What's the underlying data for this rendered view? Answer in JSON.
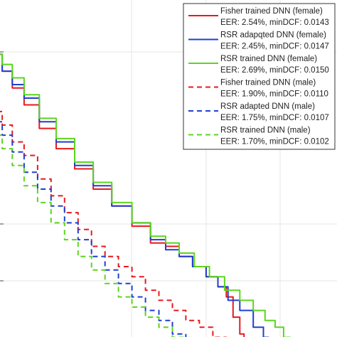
{
  "chart_data": {
    "type": "line",
    "title": "",
    "xlabel": "",
    "ylabel": "",
    "grid": true,
    "legend_position": "top-right",
    "series": [
      {
        "name": "Fisher trained DNN (female)",
        "metric": "EER: 2.54%, minDCF: 0.0143",
        "color": "#e8191e",
        "dash": "solid",
        "x": [
          0.0,
          0.03,
          0.06,
          0.1,
          0.15,
          0.2,
          0.26,
          0.31,
          0.37,
          0.43,
          0.48,
          0.52,
          0.56,
          0.6,
          0.64,
          0.67,
          0.69,
          0.71,
          0.73,
          0.735
        ],
        "y": [
          0.86,
          0.81,
          0.76,
          0.71,
          0.64,
          0.58,
          0.52,
          0.46,
          0.41,
          0.35,
          0.3,
          0.29,
          0.26,
          0.23,
          0.2,
          0.17,
          0.14,
          0.08,
          0.03,
          0.0
        ]
      },
      {
        "name": "RSR adapqted DNN (female)",
        "metric": "EER: 2.45%, minDCF: 0.0147",
        "color": "#1f3fd1",
        "dash": "solid",
        "x": [
          0.0,
          0.03,
          0.06,
          0.1,
          0.15,
          0.2,
          0.26,
          0.31,
          0.37,
          0.43,
          0.48,
          0.52,
          0.56,
          0.6,
          0.64,
          0.67,
          0.7,
          0.74,
          0.78,
          0.8,
          0.81
        ],
        "y": [
          0.86,
          0.81,
          0.77,
          0.73,
          0.66,
          0.6,
          0.53,
          0.47,
          0.41,
          0.36,
          0.31,
          0.28,
          0.26,
          0.23,
          0.2,
          0.17,
          0.13,
          0.1,
          0.05,
          0.02,
          0.0
        ]
      },
      {
        "name": "RSR trained DNN (female)",
        "metric": "EER: 2.69%, minDCF: 0.0150",
        "color": "#5cd51f",
        "dash": "solid",
        "x": [
          0.0,
          0.03,
          0.06,
          0.1,
          0.15,
          0.2,
          0.26,
          0.31,
          0.37,
          0.43,
          0.48,
          0.52,
          0.56,
          0.61,
          0.65,
          0.7,
          0.74,
          0.78,
          0.81,
          0.84,
          0.86,
          0.88
        ],
        "y": [
          0.86,
          0.83,
          0.79,
          0.74,
          0.67,
          0.61,
          0.54,
          0.48,
          0.42,
          0.36,
          0.32,
          0.3,
          0.27,
          0.23,
          0.2,
          0.16,
          0.13,
          0.1,
          0.07,
          0.05,
          0.02,
          0.0
        ]
      },
      {
        "name": "Fisher trained DNN (male)",
        "metric": "EER: 1.90%, minDCF: 0.0110",
        "color": "#e8191e",
        "dash": "dashed",
        "x": [
          0.0,
          0.03,
          0.06,
          0.1,
          0.14,
          0.18,
          0.22,
          0.26,
          0.3,
          0.34,
          0.38,
          0.42,
          0.46,
          0.5,
          0.54,
          0.58,
          0.62,
          0.66,
          0.7
        ],
        "y": [
          0.69,
          0.65,
          0.6,
          0.56,
          0.49,
          0.44,
          0.39,
          0.34,
          0.29,
          0.26,
          0.23,
          0.2,
          0.16,
          0.13,
          0.1,
          0.07,
          0.05,
          0.02,
          0.0
        ]
      },
      {
        "name": "RSR adapted DNN (male)",
        "metric": "EER: 1.75%, minDCF: 0.0107",
        "color": "#1f3fd1",
        "dash": "dashed",
        "x": [
          0.0,
          0.03,
          0.06,
          0.1,
          0.14,
          0.18,
          0.22,
          0.26,
          0.3,
          0.34,
          0.38,
          0.42,
          0.46,
          0.5,
          0.54,
          0.58
        ],
        "y": [
          0.66,
          0.62,
          0.57,
          0.51,
          0.46,
          0.41,
          0.36,
          0.31,
          0.26,
          0.22,
          0.18,
          0.14,
          0.1,
          0.07,
          0.03,
          0.0
        ]
      },
      {
        "name": "RSR trained DNN (male)",
        "metric": "EER: 1.70%, minDCF: 0.0102",
        "color": "#5cd51f",
        "dash": "dashed",
        "x": [
          0.0,
          0.03,
          0.06,
          0.1,
          0.14,
          0.18,
          0.22,
          0.26,
          0.3,
          0.34,
          0.38,
          0.42,
          0.46,
          0.5,
          0.54,
          0.57
        ],
        "y": [
          0.62,
          0.58,
          0.53,
          0.47,
          0.42,
          0.36,
          0.31,
          0.26,
          0.22,
          0.18,
          0.14,
          0.11,
          0.08,
          0.05,
          0.02,
          0.0
        ]
      }
    ]
  }
}
